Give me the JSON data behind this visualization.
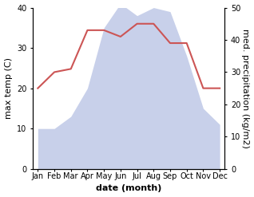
{
  "months": [
    "Jan",
    "Feb",
    "Mar",
    "Apr",
    "May",
    "Jun",
    "Jul",
    "Aug",
    "Sep",
    "Oct",
    "Nov",
    "Dec"
  ],
  "temperature": [
    10,
    10,
    13,
    20,
    35,
    41,
    38,
    40,
    39,
    28,
    15,
    11
  ],
  "precipitation": [
    25,
    30,
    31,
    43,
    43,
    41,
    45,
    45,
    39,
    39,
    25,
    25
  ],
  "temp_fill_color": "#c8d0ea",
  "precip_color": "#cc5555",
  "ylabel_left": "max temp (C)",
  "ylabel_right": "med. precipitation (kg/m2)",
  "xlabel": "date (month)",
  "ylim_left": [
    0,
    40
  ],
  "ylim_right": [
    0,
    50
  ],
  "yticks_left": [
    0,
    10,
    20,
    30,
    40
  ],
  "yticks_right": [
    0,
    10,
    20,
    30,
    40,
    50
  ],
  "background_color": "#ffffff",
  "tick_fontsize": 7,
  "label_fontsize": 8,
  "xlabel_fontsize": 8
}
